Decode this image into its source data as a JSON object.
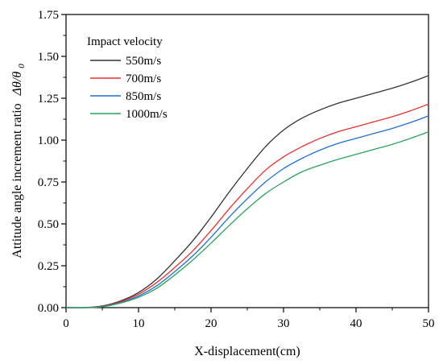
{
  "chart_data": {
    "type": "line",
    "title": "",
    "xlabel": "X-displacement(cm)",
    "ylabel": "Attitude angle increment ratio",
    "ylabel_symbol": "Δθ/θ",
    "ylabel_subscript": "0",
    "xlim": [
      0,
      50
    ],
    "ylim": [
      0,
      1.75
    ],
    "x_ticks": [
      "0",
      "10",
      "20",
      "30",
      "40",
      "50"
    ],
    "y_ticks": [
      "0.00",
      "0.25",
      "0.50",
      "0.75",
      "1.00",
      "1.25",
      "1.50",
      "1.75"
    ],
    "grid": false,
    "legend": {
      "title": "Impact velocity",
      "placement": "top-left"
    },
    "x": [
      0,
      2.5,
      5,
      7.5,
      10,
      12.5,
      15,
      17.5,
      20,
      22.5,
      25,
      27.5,
      30,
      32.5,
      35,
      37.5,
      40,
      42.5,
      45,
      47.5,
      50
    ],
    "series": [
      {
        "name": "550m/s",
        "color": "#333333",
        "values": [
          0,
          0,
          0.01,
          0.04,
          0.09,
          0.17,
          0.28,
          0.4,
          0.54,
          0.69,
          0.83,
          0.96,
          1.06,
          1.13,
          1.18,
          1.22,
          1.25,
          1.28,
          1.31,
          1.345,
          1.385
        ]
      },
      {
        "name": "700m/s",
        "color": "#e8312c",
        "values": [
          0,
          0,
          0.008,
          0.035,
          0.08,
          0.15,
          0.24,
          0.34,
          0.46,
          0.59,
          0.71,
          0.82,
          0.9,
          0.96,
          1.01,
          1.05,
          1.08,
          1.11,
          1.14,
          1.175,
          1.215
        ]
      },
      {
        "name": "850m/s",
        "color": "#1f6fd6",
        "values": [
          0,
          0,
          0.006,
          0.03,
          0.07,
          0.13,
          0.215,
          0.31,
          0.42,
          0.54,
          0.65,
          0.75,
          0.83,
          0.89,
          0.94,
          0.98,
          1.01,
          1.04,
          1.07,
          1.105,
          1.145
        ]
      },
      {
        "name": "1000m/s",
        "color": "#2ca25f",
        "values": [
          0,
          0,
          0.005,
          0.027,
          0.062,
          0.115,
          0.195,
          0.285,
          0.385,
          0.49,
          0.59,
          0.68,
          0.75,
          0.81,
          0.85,
          0.885,
          0.915,
          0.945,
          0.975,
          1.01,
          1.05
        ]
      }
    ]
  }
}
